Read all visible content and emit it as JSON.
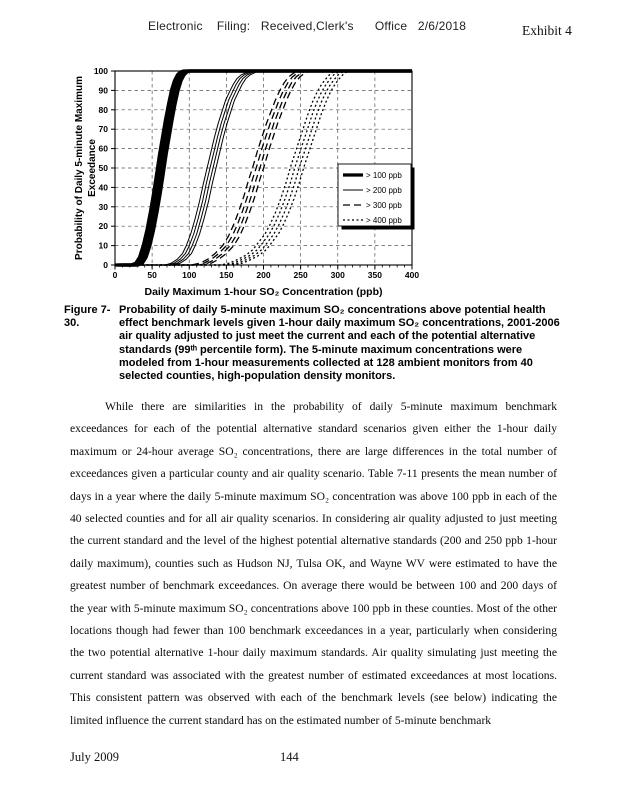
{
  "header": {
    "filing_line": "Electronic    Filing:   Received,Clerk's      Office   2/6/2018",
    "exhibit_label": "Exhibit 4"
  },
  "figure": {
    "caption_label": "Figure 7-30.",
    "caption_text": "Probability of daily 5-minute maximum SO₂ concentrations above potential health effect benchmark levels given 1-hour daily maximum SO₂ concentrations, 2001-2006 air quality adjusted to just meet the current and each of the potential alternative standards (99ᵗʰ percentile form).  The 5-minute maximum concentrations were modeled from 1-hour measurements collected at 128 ambient monitors from 40 selected counties, high-population density monitors."
  },
  "body": {
    "paragraph": "While there are similarities in the probability of daily 5-minute maximum benchmark exceedances for each of the potential alternative standard scenarios given either the 1-hour daily maximum or 24-hour average SO₂ concentrations, there are large differences in the total number of exceedances given a particular county and air quality scenario.  Table 7-11 presents the mean number of days in a year where the daily 5-minute maximum SO₂ concentration was above 100 ppb in each of the 40 selected counties and for all air quality scenarios.  In considering air quality adjusted to just meeting the current standard and the level of the highest potential alternative standards (200 and 250 ppb 1-hour daily maximum), counties such as Hudson NJ, Tulsa OK, and Wayne WV were estimated to have the greatest number of benchmark exceedances.  On average there would be between 100 and 200 days of the year with 5-minute maximum SO₂ concentrations above 100 ppb in these counties.  Most of the other locations though had fewer than 100 benchmark exceedances in a year, particularly when considering the two potential alternative 1-hour daily maximum standards.  Air quality simulating just meeting the current standard was associated with the greatest number of estimated exceedances at most locations.  This consistent pattern was observed with each of the benchmark levels (see below) indicating the limited influence the current standard has on the estimated number of 5-minute benchmark"
  },
  "footer": {
    "date": "July 2009",
    "page_number": "144"
  },
  "chart_data": {
    "type": "line",
    "title": "",
    "xlabel": "Daily Maximum 1-hour SO₂ Concentration (ppb)",
    "ylabel_lines": [
      "Probability of Daily 5-minute Maximum",
      "Exceedance"
    ],
    "xlim": [
      0,
      400
    ],
    "ylim": [
      0,
      100
    ],
    "x_major_ticks": [
      0,
      50,
      100,
      150,
      200,
      250,
      300,
      350,
      400
    ],
    "x_minor_step": 10,
    "y_major_ticks": [
      0,
      10,
      20,
      30,
      40,
      50,
      60,
      70,
      80,
      90,
      100
    ],
    "grid": {
      "style": "dashed",
      "horizontal_every": 10,
      "vertical_every": 50
    },
    "legend": {
      "position": "middle-right",
      "entries": [
        "> 100 ppb",
        "> 200 ppb",
        "> 300 ppb",
        "> 400 ppb"
      ]
    },
    "axis_color": "#000000",
    "grid_color": "#555555",
    "series": [
      {
        "name": "> 100 ppb",
        "line": "solid",
        "width": 3.2,
        "bundle_offsets_ppb": [
          0,
          3,
          6,
          9
        ],
        "points": [
          [
            0,
            0
          ],
          [
            22,
            0
          ],
          [
            28,
            1
          ],
          [
            33,
            4
          ],
          [
            38,
            10
          ],
          [
            43,
            18
          ],
          [
            48,
            28
          ],
          [
            52,
            37
          ],
          [
            56,
            47
          ],
          [
            60,
            57
          ],
          [
            64,
            66
          ],
          [
            68,
            75
          ],
          [
            72,
            83
          ],
          [
            76,
            90
          ],
          [
            80,
            95
          ],
          [
            84,
            98
          ],
          [
            88,
            99.5
          ],
          [
            92,
            100
          ],
          [
            400,
            100
          ]
        ]
      },
      {
        "name": "> 200 ppb",
        "line": "solid",
        "width": 1.0,
        "bundle_offsets_ppb": [
          -4,
          0,
          4,
          8
        ],
        "points": [
          [
            0,
            0
          ],
          [
            72,
            0
          ],
          [
            80,
            1
          ],
          [
            88,
            3
          ],
          [
            95,
            6
          ],
          [
            100,
            10
          ],
          [
            106,
            16
          ],
          [
            112,
            24
          ],
          [
            118,
            33
          ],
          [
            123,
            42
          ],
          [
            128,
            50
          ],
          [
            133,
            58
          ],
          [
            138,
            66
          ],
          [
            143,
            73
          ],
          [
            148,
            79
          ],
          [
            153,
            85
          ],
          [
            158,
            89
          ],
          [
            163,
            93
          ],
          [
            168,
            96
          ],
          [
            174,
            98
          ],
          [
            182,
            99.5
          ],
          [
            190,
            100
          ],
          [
            400,
            100
          ]
        ]
      },
      {
        "name": "> 300 ppb",
        "line": "dashed",
        "width": 1.3,
        "bundle_offsets_ppb": [
          -5,
          0,
          5,
          10
        ],
        "points": [
          [
            0,
            0
          ],
          [
            108,
            0
          ],
          [
            120,
            1
          ],
          [
            130,
            3
          ],
          [
            140,
            6
          ],
          [
            150,
            10
          ],
          [
            158,
            15
          ],
          [
            165,
            21
          ],
          [
            172,
            28
          ],
          [
            179,
            36
          ],
          [
            185,
            44
          ],
          [
            191,
            51
          ],
          [
            197,
            59
          ],
          [
            203,
            66
          ],
          [
            209,
            73
          ],
          [
            215,
            79
          ],
          [
            221,
            85
          ],
          [
            227,
            90
          ],
          [
            233,
            94
          ],
          [
            239,
            97
          ],
          [
            246,
            99
          ],
          [
            253,
            100
          ],
          [
            400,
            100
          ]
        ]
      },
      {
        "name": "> 400 ppb",
        "line": "dotted",
        "width": 1.3,
        "bundle_offsets_ppb": [
          -6,
          0,
          6,
          12
        ],
        "points": [
          [
            0,
            0
          ],
          [
            148,
            0
          ],
          [
            160,
            1
          ],
          [
            172,
            3
          ],
          [
            182,
            5
          ],
          [
            192,
            8
          ],
          [
            200,
            12
          ],
          [
            208,
            16
          ],
          [
            215,
            21
          ],
          [
            222,
            27
          ],
          [
            229,
            34
          ],
          [
            236,
            42
          ],
          [
            242,
            50
          ],
          [
            248,
            57
          ],
          [
            254,
            64
          ],
          [
            260,
            71
          ],
          [
            266,
            78
          ],
          [
            272,
            84
          ],
          [
            278,
            89
          ],
          [
            284,
            93
          ],
          [
            290,
            96
          ],
          [
            297,
            99
          ],
          [
            305,
            100
          ],
          [
            400,
            100
          ]
        ]
      }
    ]
  }
}
